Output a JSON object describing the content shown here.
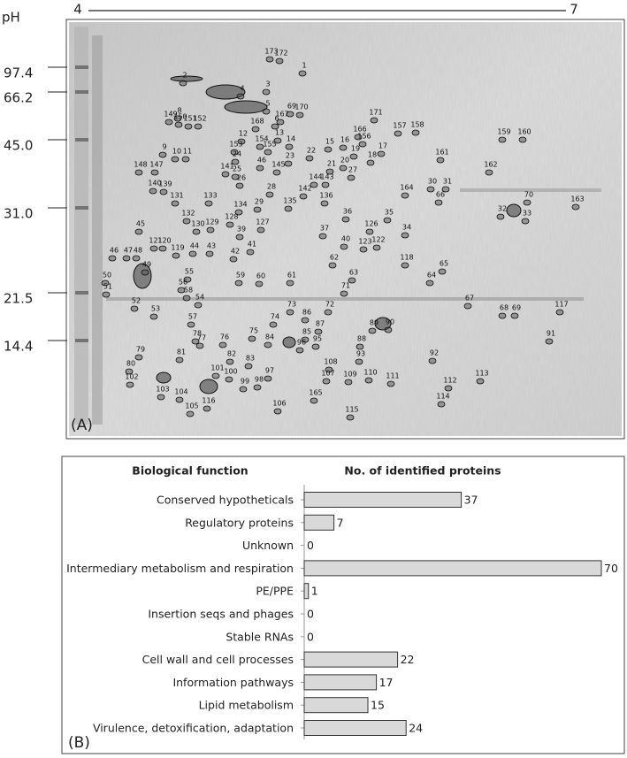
{
  "panel_a": {
    "label": "(A)",
    "ph_title": "pH",
    "ph_min": "4",
    "ph_max": "7",
    "mw_markers": [
      "97.4",
      "66.2",
      "45.0",
      "31.0",
      "21.5",
      "14.4"
    ],
    "spots": [
      "173",
      "172",
      "1",
      "2",
      "3",
      "4",
      "5",
      "69",
      "170",
      "167",
      "6",
      "8",
      "149",
      "150",
      "151",
      "152",
      "168",
      "12",
      "13",
      "154",
      "153",
      "155",
      "14",
      "9",
      "10",
      "11",
      "148",
      "147",
      "24",
      "46",
      "145",
      "23",
      "22",
      "15",
      "16",
      "166",
      "156",
      "17",
      "19",
      "20",
      "18",
      "21",
      "27",
      "171",
      "157",
      "158",
      "161",
      "159",
      "160",
      "162",
      "30",
      "31",
      "164",
      "66",
      "70",
      "163",
      "32",
      "33",
      "141",
      "25",
      "26",
      "28",
      "142",
      "144",
      "143",
      "136",
      "29",
      "135",
      "134",
      "140",
      "139",
      "131",
      "133",
      "132",
      "128",
      "127",
      "129",
      "130",
      "39",
      "37",
      "36",
      "35",
      "126",
      "122",
      "123",
      "34",
      "40",
      "41",
      "42",
      "43",
      "44",
      "45",
      "46",
      "47",
      "48",
      "121",
      "120",
      "119",
      "49",
      "50",
      "51",
      "52",
      "53",
      "55",
      "56",
      "58",
      "54",
      "57",
      "59",
      "60",
      "61",
      "62",
      "63",
      "118",
      "65",
      "64",
      "71",
      "73",
      "72",
      "86",
      "87",
      "74",
      "85",
      "95",
      "96",
      "84",
      "75",
      "76",
      "82",
      "83",
      "78",
      "77",
      "81",
      "79",
      "80",
      "102",
      "103",
      "104",
      "105",
      "116",
      "101",
      "100",
      "99",
      "98",
      "97",
      "106",
      "165",
      "108",
      "107",
      "109",
      "110",
      "111",
      "93",
      "88",
      "89",
      "90",
      "92",
      "115",
      "112",
      "113",
      "114",
      "67",
      "68",
      "69",
      "117",
      "91"
    ]
  },
  "chart_data": {
    "type": "bar",
    "orientation": "horizontal",
    "panel_label": "(B)",
    "category_header": "Biological function",
    "value_header": "No. of identified proteins",
    "categories": [
      "Conserved hypotheticals",
      "Regulatory proteins",
      "Unknown",
      "Intermediary metabolism and respiration",
      "PE/PPE",
      "Insertion seqs and phages",
      "Stable RNAs",
      "Cell wall and cell processes",
      "Information pathways",
      "Lipid metabolism",
      "Virulence, detoxification, adaptation"
    ],
    "values": [
      37,
      7,
      0,
      70,
      1,
      0,
      0,
      22,
      17,
      15,
      24
    ],
    "xlim": [
      0,
      70
    ],
    "color": "#d9d9d9"
  }
}
